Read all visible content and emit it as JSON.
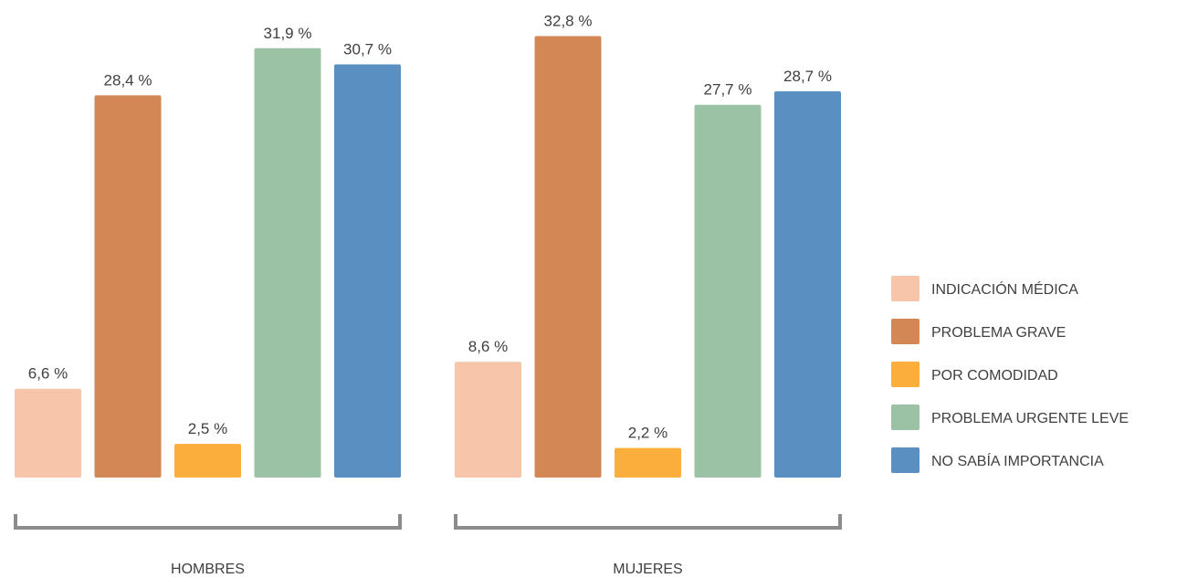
{
  "chart_data": {
    "type": "bar",
    "categories": [
      "HOMBRES",
      "MUJERES"
    ],
    "series": [
      {
        "name": "INDICACIÓN MÉDICA",
        "color": "#f6c5aa",
        "values": [
          6.6,
          8.6
        ],
        "labels": [
          "6,6  %",
          "8,6  %"
        ]
      },
      {
        "name": "PROBLEMA GRAVE",
        "color": "#d38755",
        "values": [
          28.4,
          32.8
        ],
        "labels": [
          "28,4  %",
          "32,8  %"
        ]
      },
      {
        "name": "POR COMODIDAD",
        "color": "#fbae3c",
        "values": [
          2.5,
          2.2
        ],
        "labels": [
          "2,5  %",
          "2,2  %"
        ]
      },
      {
        "name": "PROBLEMA  URGENTE LEVE",
        "color": "#9bc2a5",
        "values": [
          31.9,
          27.7
        ],
        "labels": [
          "31,9  %",
          "27,7  %"
        ]
      },
      {
        "name": "NO SABÍA  IMPORTANCIA",
        "color": "#5a8fc1",
        "values": [
          30.7,
          28.7
        ],
        "labels": [
          "30,7  %",
          "28,7  %"
        ]
      }
    ],
    "title": "",
    "xlabel": "",
    "ylabel": "",
    "ylim": [
      0,
      35
    ],
    "grid": false,
    "legend_position": "right"
  }
}
